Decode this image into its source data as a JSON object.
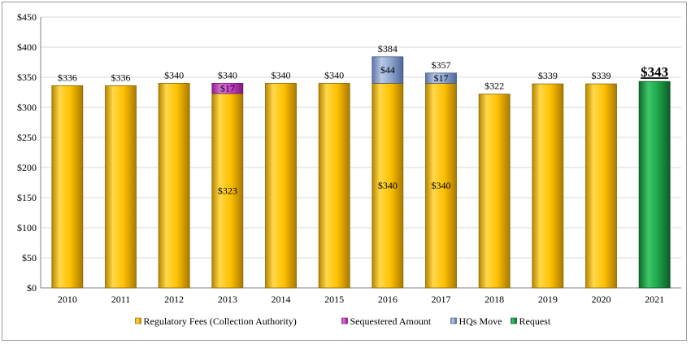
{
  "chart_data": {
    "type": "bar",
    "stacked": true,
    "title": "",
    "xlabel": "",
    "ylabel": "",
    "ylim": [
      0,
      450
    ],
    "yticks": [
      "$0",
      "$50",
      "$100",
      "$150",
      "$200",
      "$250",
      "$300",
      "$350",
      "$400",
      "$450"
    ],
    "ytick_values": [
      0,
      50,
      100,
      150,
      200,
      250,
      300,
      350,
      400,
      450
    ],
    "grid": true,
    "legend_position": "bottom",
    "categories": [
      "2010",
      "2011",
      "2012",
      "2013",
      "2014",
      "2015",
      "2016",
      "2017",
      "2018",
      "2019",
      "2020",
      "2021"
    ],
    "series": [
      {
        "name": "Regulatory Fees (Collection Authority)",
        "color": "#FFC000",
        "values": [
          336,
          336,
          340,
          323,
          340,
          340,
          340,
          340,
          322,
          339,
          339,
          0
        ]
      },
      {
        "name": "Sequestered Amount",
        "color": "#CC44CC",
        "values": [
          0,
          0,
          0,
          17,
          0,
          0,
          0,
          0,
          0,
          0,
          0,
          0
        ]
      },
      {
        "name": "HQs Move",
        "color": "#8FA6CE",
        "values": [
          0,
          0,
          0,
          0,
          0,
          0,
          44,
          17,
          0,
          0,
          0,
          0
        ]
      },
      {
        "name": "Request",
        "color": "#1FA64A",
        "values": [
          0,
          0,
          0,
          0,
          0,
          0,
          0,
          0,
          0,
          0,
          0,
          343
        ]
      }
    ],
    "total_labels": [
      "$336",
      "$336",
      "$340",
      "$340",
      "$340",
      "$340",
      "$384",
      "$357",
      "$322",
      "$339",
      "$339",
      "$343"
    ],
    "segment_labels": [
      {
        "category": "2013",
        "series": "Regulatory Fees (Collection Authority)",
        "value": 323,
        "text": "$323"
      },
      {
        "category": "2013",
        "series": "Sequestered Amount",
        "value": 17,
        "text": "$17"
      },
      {
        "category": "2016",
        "series": "Regulatory Fees (Collection Authority)",
        "value": 340,
        "text": "$340"
      },
      {
        "category": "2016",
        "series": "HQs Move",
        "value": 44,
        "text": "$44"
      },
      {
        "category": "2017",
        "series": "Regulatory Fees (Collection Authority)",
        "value": 340,
        "text": "$340"
      },
      {
        "category": "2017",
        "series": "HQs Move",
        "value": 17,
        "text": "$17"
      }
    ],
    "highlight_category": "2021"
  }
}
